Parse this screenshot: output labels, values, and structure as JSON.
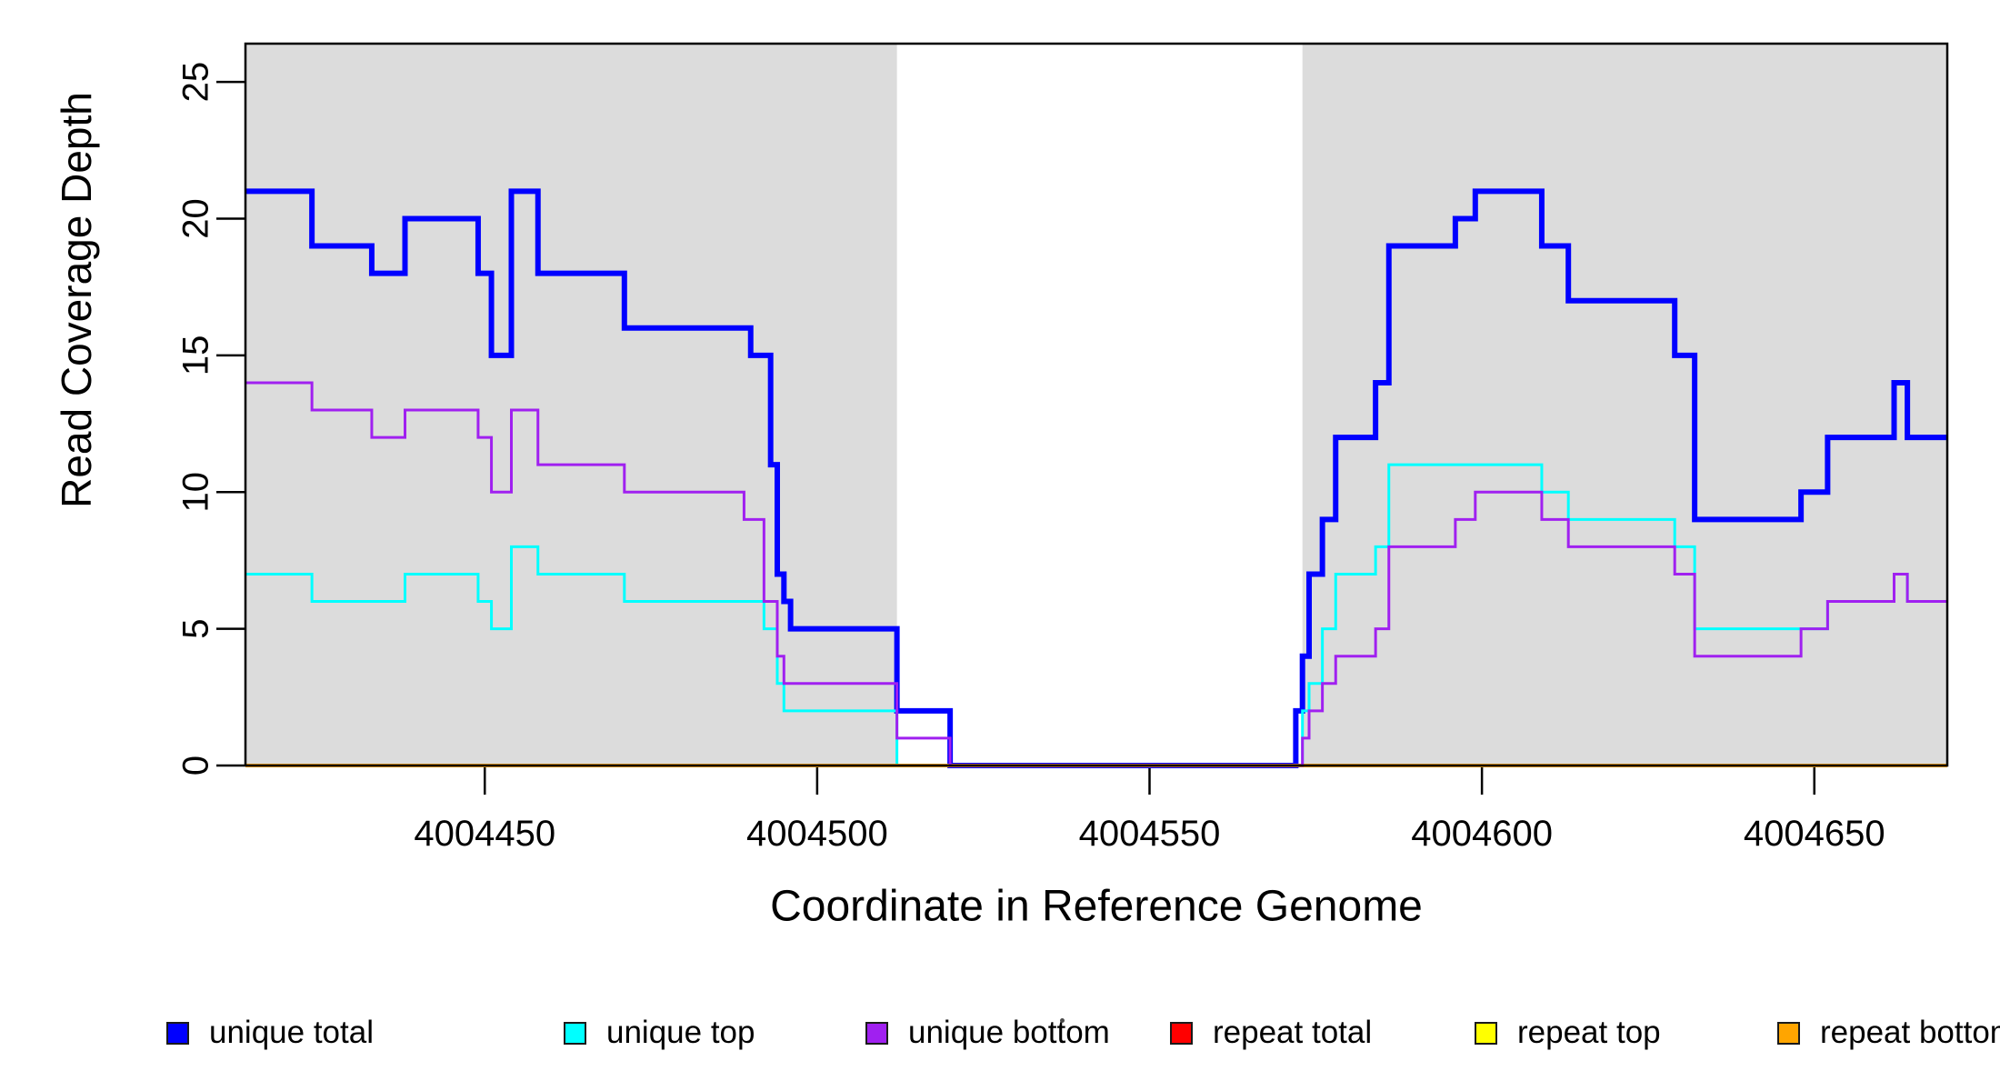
{
  "figure": {
    "x_axis_title": "Coordinate in Reference Genome",
    "y_axis_title": "Read Coverage Depth"
  },
  "chart_data": {
    "type": "line",
    "step": true,
    "title": "",
    "xlabel": "Coordinate in Reference Genome",
    "ylabel": "Read Coverage Depth",
    "xlim": [
      4004414,
      4004670
    ],
    "ylim": [
      0,
      26.4
    ],
    "x_ticks": [
      4004450,
      4004500,
      4004550,
      4004600,
      4004650
    ],
    "y_ticks": [
      0,
      5,
      10,
      15,
      20,
      25
    ],
    "grid": false,
    "legend_position": "bottom",
    "plot_background": "#ffffff",
    "shaded_regions": [
      {
        "x0": 4004414,
        "x1": 4004512,
        "color": "#DCDCDC"
      },
      {
        "x0": 4004573,
        "x1": 4004670,
        "color": "#DCDCDC"
      }
    ],
    "series": [
      {
        "name": "repeat total",
        "color": "#FF0000",
        "width": 4,
        "points": [
          [
            4004414,
            0
          ]
        ]
      },
      {
        "name": "repeat top",
        "color": "#FFFF00",
        "width": 4,
        "points": [
          [
            4004414,
            0
          ]
        ]
      },
      {
        "name": "unique total",
        "color": "#0000FF",
        "width": 6,
        "points": [
          [
            4004414,
            21
          ],
          [
            4004424,
            19
          ],
          [
            4004433,
            18
          ],
          [
            4004438,
            20
          ],
          [
            4004449,
            18
          ],
          [
            4004451,
            15
          ],
          [
            4004454,
            21
          ],
          [
            4004458,
            18
          ],
          [
            4004471,
            16
          ],
          [
            4004490,
            15
          ],
          [
            4004493,
            11
          ],
          [
            4004494,
            7
          ],
          [
            4004495,
            6
          ],
          [
            4004496,
            5
          ],
          [
            4004512,
            2
          ],
          [
            4004520,
            0
          ],
          [
            4004572,
            2
          ],
          [
            4004573,
            4
          ],
          [
            4004574,
            7
          ],
          [
            4004576,
            9
          ],
          [
            4004578,
            12
          ],
          [
            4004584,
            14
          ],
          [
            4004586,
            19
          ],
          [
            4004596,
            20
          ],
          [
            4004599,
            21
          ],
          [
            4004609,
            19
          ],
          [
            4004613,
            17
          ],
          [
            4004629,
            15
          ],
          [
            4004632,
            9
          ],
          [
            4004648,
            10
          ],
          [
            4004652,
            12
          ],
          [
            4004662,
            14
          ],
          [
            4004664,
            12
          ]
        ]
      },
      {
        "name": "unique top",
        "color": "#00FFFF",
        "width": 3,
        "points": [
          [
            4004414,
            7
          ],
          [
            4004424,
            6
          ],
          [
            4004438,
            7
          ],
          [
            4004449,
            6
          ],
          [
            4004451,
            5
          ],
          [
            4004454,
            8
          ],
          [
            4004458,
            7
          ],
          [
            4004471,
            6
          ],
          [
            4004492,
            5
          ],
          [
            4004494,
            3
          ],
          [
            4004495,
            2
          ],
          [
            4004512,
            0
          ],
          [
            4004573,
            2
          ],
          [
            4004574,
            3
          ],
          [
            4004576,
            5
          ],
          [
            4004578,
            7
          ],
          [
            4004584,
            8
          ],
          [
            4004586,
            11
          ],
          [
            4004609,
            10
          ],
          [
            4004613,
            9
          ],
          [
            4004629,
            8
          ],
          [
            4004632,
            5
          ],
          [
            4004652,
            6
          ],
          [
            4004662,
            7
          ],
          [
            4004664,
            6
          ]
        ]
      },
      {
        "name": "repeat bottom",
        "color": "#FFA500",
        "width": 4,
        "points": [
          [
            4004414,
            0
          ]
        ]
      },
      {
        "name": "unique bottom",
        "color": "#A020F0",
        "width": 3,
        "points": [
          [
            4004414,
            14
          ],
          [
            4004424,
            13
          ],
          [
            4004433,
            12
          ],
          [
            4004438,
            13
          ],
          [
            4004449,
            12
          ],
          [
            4004451,
            10
          ],
          [
            4004454,
            13
          ],
          [
            4004458,
            11
          ],
          [
            4004471,
            10
          ],
          [
            4004489,
            9
          ],
          [
            4004492,
            6
          ],
          [
            4004494,
            4
          ],
          [
            4004495,
            3
          ],
          [
            4004512,
            1
          ],
          [
            4004520,
            0
          ],
          [
            4004573,
            1
          ],
          [
            4004574,
            2
          ],
          [
            4004576,
            3
          ],
          [
            4004578,
            4
          ],
          [
            4004584,
            5
          ],
          [
            4004586,
            8
          ],
          [
            4004596,
            9
          ],
          [
            4004599,
            10
          ],
          [
            4004609,
            9
          ],
          [
            4004613,
            8
          ],
          [
            4004629,
            7
          ],
          [
            4004632,
            4
          ],
          [
            4004648,
            5
          ],
          [
            4004652,
            6
          ],
          [
            4004662,
            7
          ],
          [
            4004664,
            6
          ]
        ]
      }
    ],
    "legend": [
      {
        "label": "unique total",
        "color": "#0000FF"
      },
      {
        "label": "unique top",
        "color": "#00FFFF"
      },
      {
        "label": "unique bottom",
        "color": "#A020F0"
      },
      {
        "label": "repeat total",
        "color": "#FF0000"
      },
      {
        "label": "repeat top",
        "color": "#FFFF00"
      },
      {
        "label": "repeat bottom",
        "color": "#FFA500"
      }
    ]
  }
}
